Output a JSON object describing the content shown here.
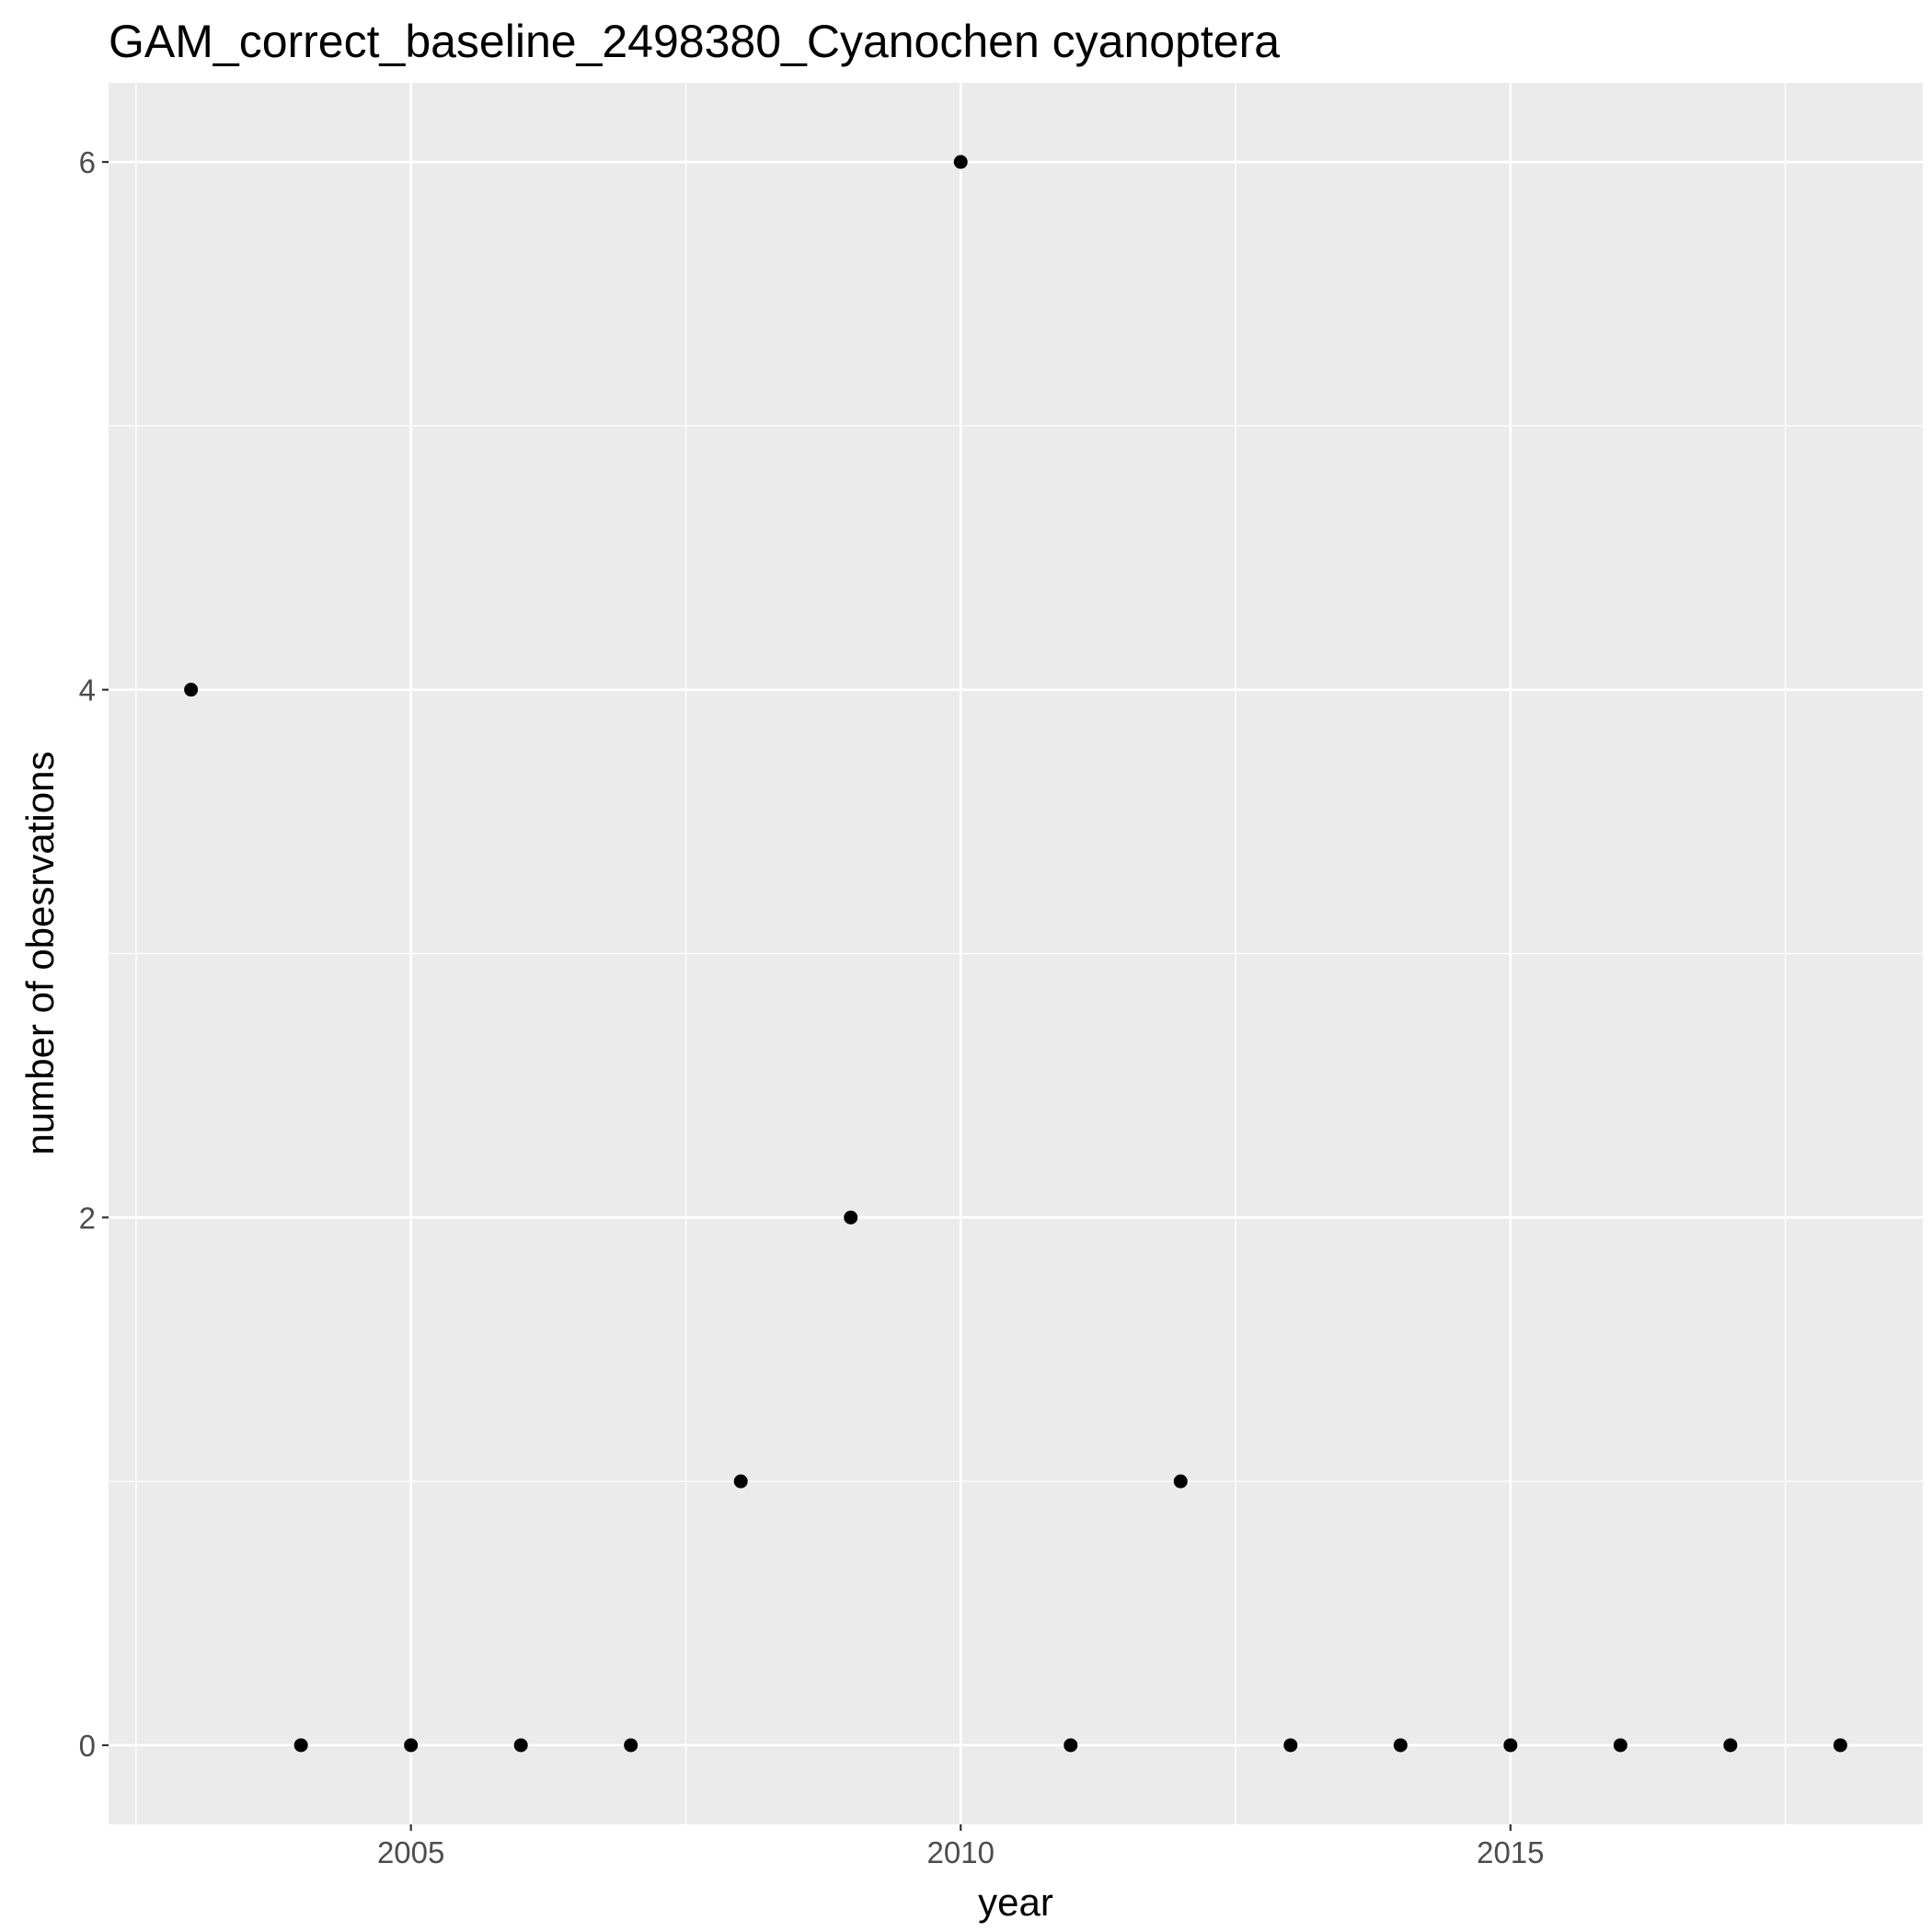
{
  "chart_data": {
    "type": "scatter",
    "title": "GAM_correct_baseline_2498380_Cyanochen cyanoptera",
    "xlabel": "year",
    "ylabel": "number of obesrvations",
    "xlim": [
      2002.25,
      2018.75
    ],
    "ylim": [
      -0.3,
      6.3
    ],
    "x_ticks": [
      2005,
      2010,
      2015
    ],
    "x_tick_labels": [
      "2005",
      "2010",
      "2015"
    ],
    "x_minor_ticks": [
      2002.5,
      2007.5,
      2012.5,
      2017.5
    ],
    "y_ticks": [
      0,
      2,
      4,
      6
    ],
    "y_tick_labels": [
      "0",
      "2",
      "4",
      "6"
    ],
    "y_minor_ticks": [
      1,
      3,
      5
    ],
    "grid": true,
    "legend": "none",
    "points": [
      {
        "x": 2003,
        "y": 4
      },
      {
        "x": 2004,
        "y": 0
      },
      {
        "x": 2005,
        "y": 0
      },
      {
        "x": 2006,
        "y": 0
      },
      {
        "x": 2007,
        "y": 0
      },
      {
        "x": 2008,
        "y": 1
      },
      {
        "x": 2009,
        "y": 2
      },
      {
        "x": 2010,
        "y": 6
      },
      {
        "x": 2011,
        "y": 0
      },
      {
        "x": 2012,
        "y": 1
      },
      {
        "x": 2013,
        "y": 0
      },
      {
        "x": 2014,
        "y": 0
      },
      {
        "x": 2015,
        "y": 0
      },
      {
        "x": 2016,
        "y": 0
      },
      {
        "x": 2017,
        "y": 0
      },
      {
        "x": 2018,
        "y": 0
      }
    ],
    "colors": {
      "panel": "#ebebeb",
      "grid": "#ffffff",
      "point": "#000000",
      "tick_text": "#4d4d4d",
      "tick_mark": "#333333"
    }
  }
}
